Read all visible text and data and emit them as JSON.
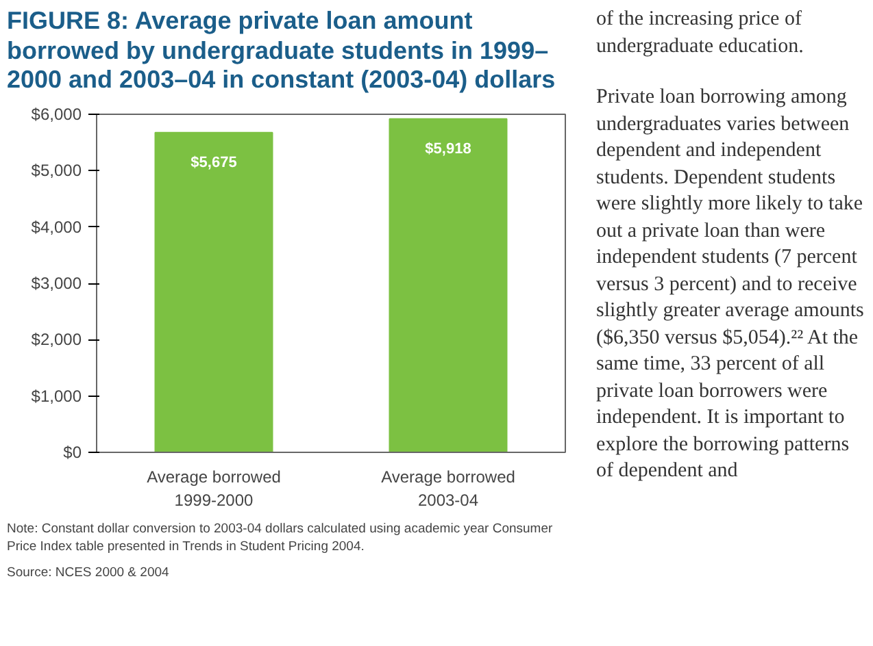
{
  "chart_data": {
    "type": "bar",
    "title": "FIGURE 8: Average private loan amount borrowed by undergraduate students in 1999–2000 and 2003–04 in constant (2003-04) dollars",
    "categories": [
      "Average borrowed\n1999-2000",
      "Average borrowed\n2003-04"
    ],
    "values": [
      5675,
      5918
    ],
    "color": "#7cc142",
    "value_labels": [
      "$5,675",
      "$5,918"
    ],
    "ylim": [
      0,
      6000
    ],
    "yticks": [
      {
        "value": 0,
        "label": "$0"
      },
      {
        "value": 1000,
        "label": "$1,000"
      },
      {
        "value": 2000,
        "label": "$2,000"
      },
      {
        "value": 3000,
        "label": "$3,000"
      },
      {
        "value": 4000,
        "label": "$4,000"
      },
      {
        "value": 5000,
        "label": "$5,000"
      },
      {
        "value": 6000,
        "label": "$6,000"
      }
    ],
    "grid": false,
    "annotations": [
      "Note: Constant dollar conversion to 2003-04 dollars calculated using academic year Consumer Price Index table presented in Trends in Student Pricing 2004.",
      "Source: NCES 2000 & 2004",
      "of the increasing price of undergraduate education.",
      "Private loan borrowing among undergraduates varies between dependent and independent students. Dependent students were slightly more likely to take out a private loan than were independent students (7 percent versus 3 percent) and to receive slightly greater average amounts ($6,350 versus $5,054).²² At the same time, 33 percent of all private loan borrowers were independent. It is important to explore the borrowing patterns of dependent and"
    ]
  }
}
